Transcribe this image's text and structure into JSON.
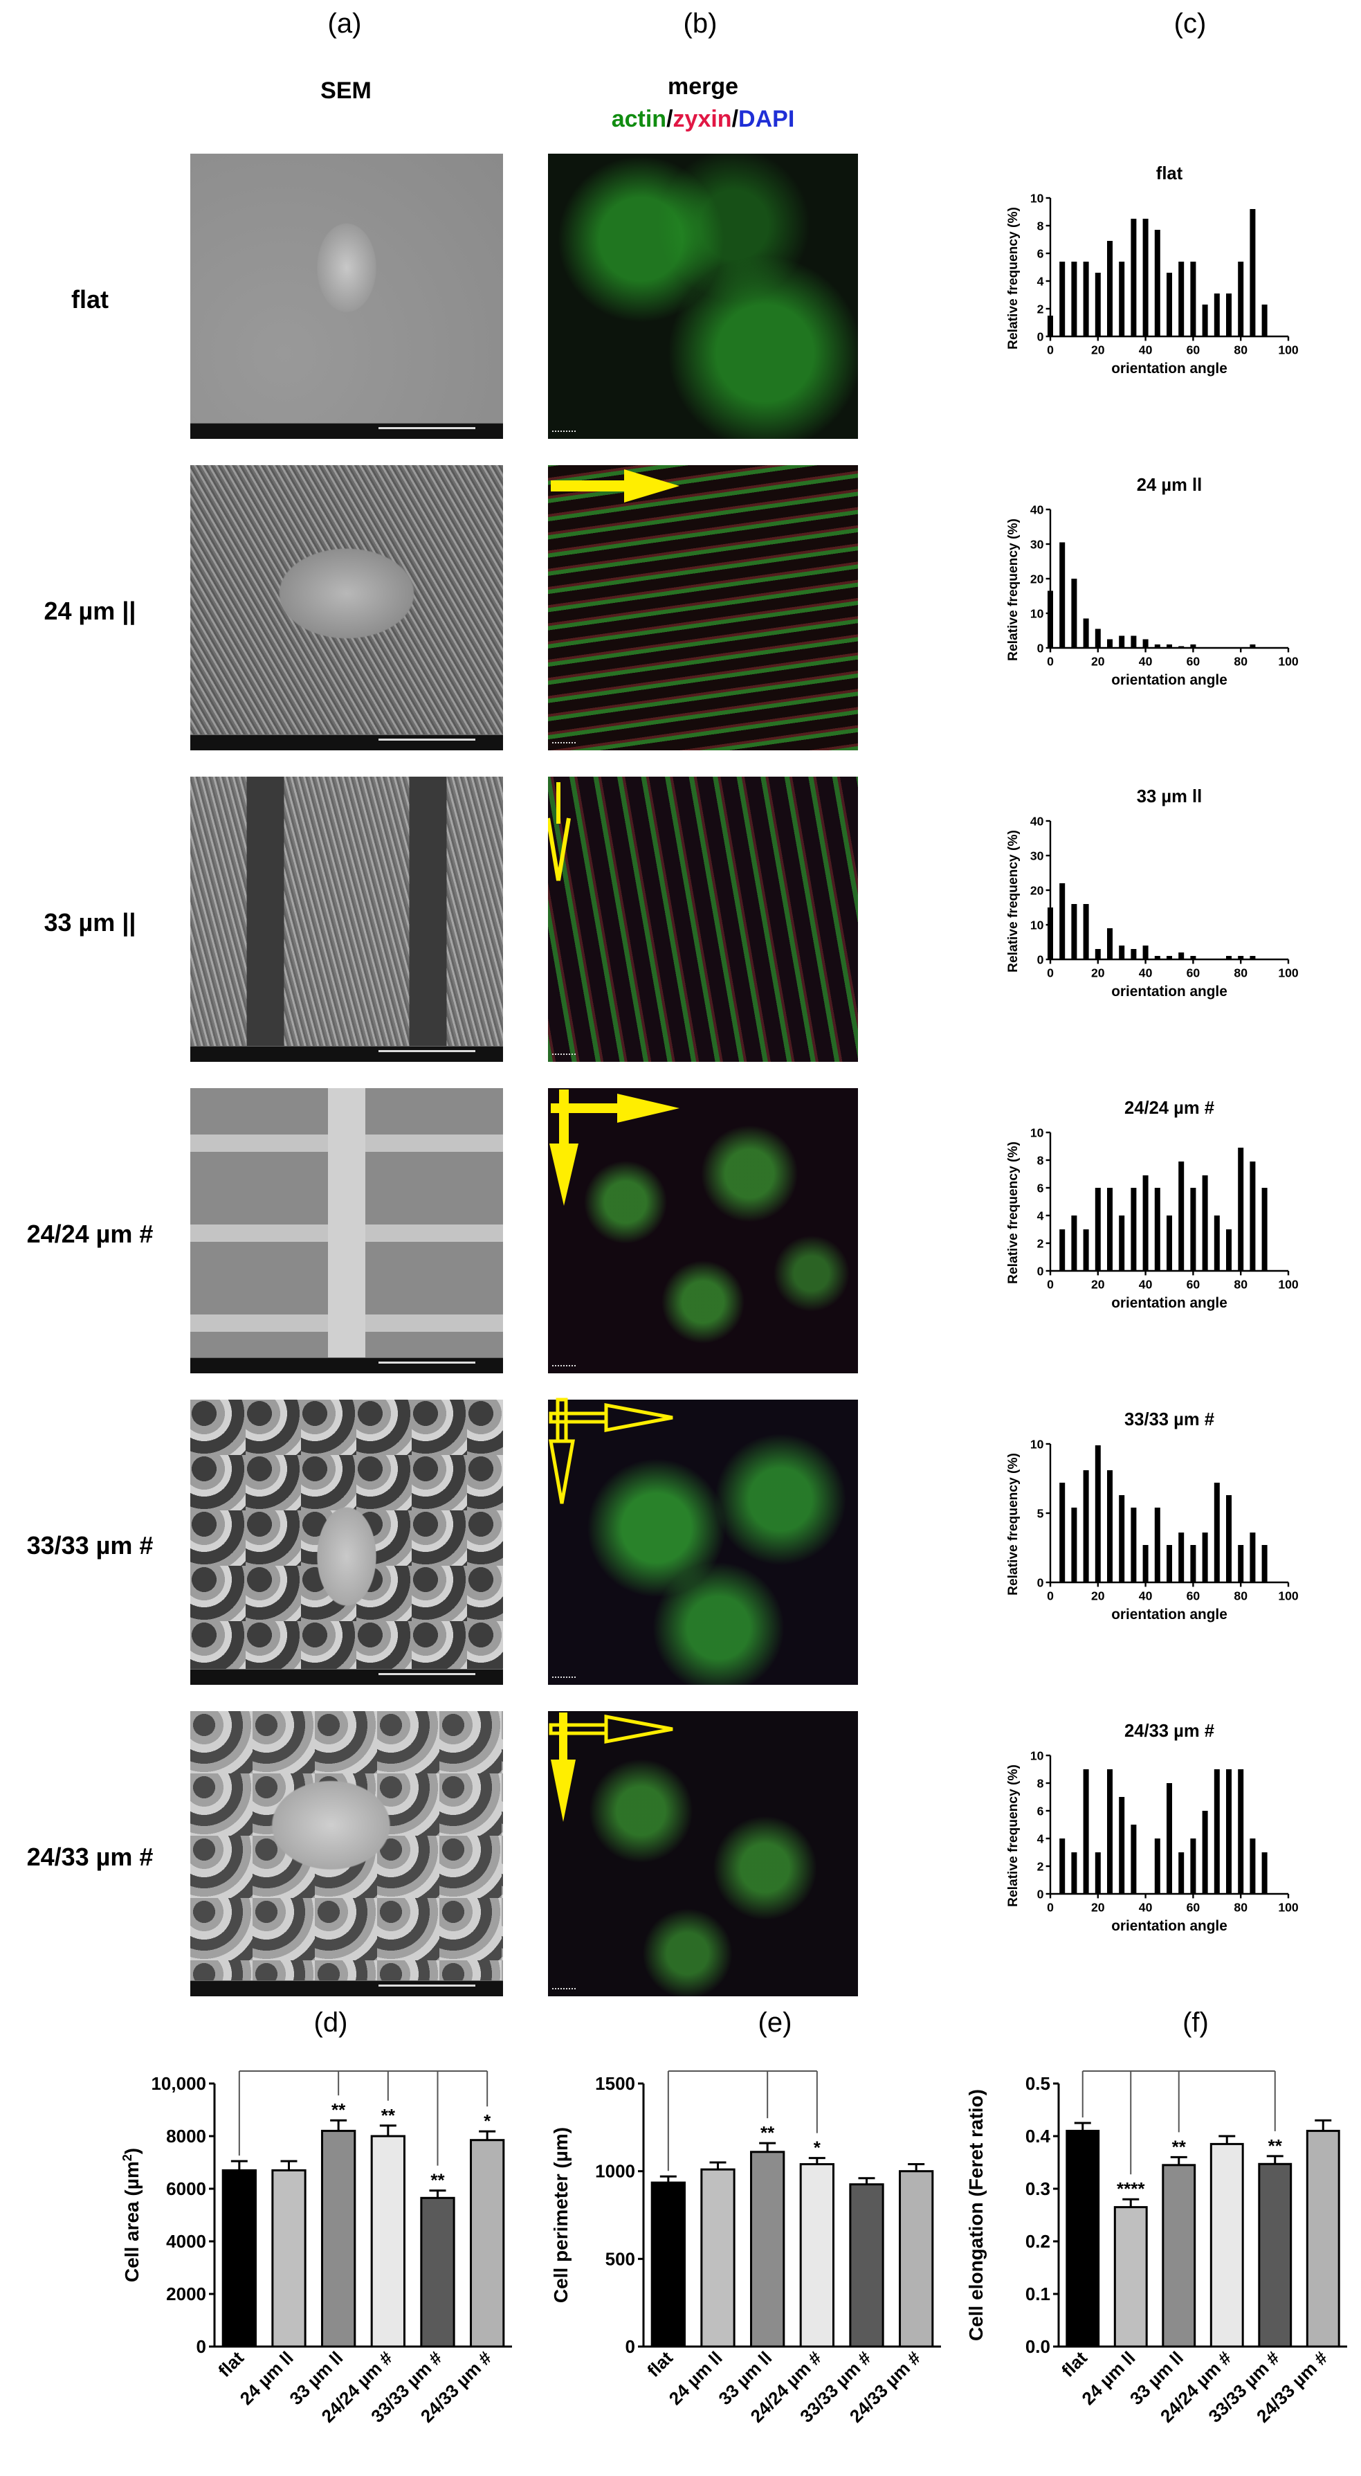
{
  "colors": {
    "actin": "#118d11",
    "zyxin": "#e11744",
    "dapi": "#1f2fd6",
    "arrow": "#ffee00",
    "bar_flat": "#000000",
    "bar_24": "#bfbfbf",
    "bar_33": "#8c8c8c",
    "bar_2424": "#e8e8e8",
    "bar_3333": "#5a5a5a",
    "bar_2433": "#b2b2b2"
  },
  "panel_letters": {
    "a": "(a)",
    "b": "(b)",
    "c": "(c)",
    "d": "(d)",
    "e": "(e)",
    "f": "(f)"
  },
  "columns": {
    "sem_title": "SEM",
    "merge_title": "merge",
    "actin": "actin",
    "slash1": "/",
    "zyxin": "zyxin",
    "slash2": "/",
    "dapi": "DAPI"
  },
  "rows": [
    {
      "label": "flat",
      "arrows": "none"
    },
    {
      "label": "24 µm ||",
      "arrows": "horizontal"
    },
    {
      "label": "33 µm ||",
      "arrows": "vertical"
    },
    {
      "label": "24/24 µm #",
      "arrows": "both"
    },
    {
      "label": "33/33 µm #",
      "arrows": "both-outline"
    },
    {
      "label": "24/33 µm #",
      "arrows": "both-outline-h"
    }
  ],
  "chart_data": [
    {
      "type": "bar",
      "title": "flat",
      "xlabel": "orientation angle",
      "ylabel": "Relative frequency (%)",
      "xlim": [
        0,
        100
      ],
      "ylim": [
        0,
        10
      ],
      "yticks": [
        0,
        2,
        4,
        6,
        8,
        10
      ],
      "xticks": [
        0,
        20,
        40,
        60,
        80,
        100
      ],
      "x": [
        0,
        5,
        10,
        15,
        20,
        25,
        30,
        35,
        40,
        45,
        50,
        55,
        60,
        65,
        70,
        75,
        80,
        85,
        90
      ],
      "values": [
        1.5,
        5.4,
        5.4,
        5.4,
        4.6,
        6.9,
        5.4,
        8.5,
        8.5,
        7.7,
        4.6,
        5.4,
        5.4,
        2.3,
        3.1,
        3.1,
        5.4,
        9.2,
        2.3
      ]
    },
    {
      "type": "bar",
      "title": "24 µm ll",
      "xlabel": "orientation angle",
      "ylabel": "Relative frequency (%)",
      "xlim": [
        0,
        100
      ],
      "ylim": [
        0,
        40
      ],
      "yticks": [
        0,
        10,
        20,
        30,
        40
      ],
      "xticks": [
        0,
        20,
        40,
        60,
        80,
        100
      ],
      "x": [
        0,
        5,
        10,
        15,
        20,
        25,
        30,
        35,
        40,
        45,
        50,
        55,
        60,
        65,
        70,
        75,
        80,
        85,
        90
      ],
      "values": [
        16.5,
        30.5,
        20,
        8.5,
        5.5,
        2.5,
        3.5,
        3.5,
        2.5,
        1,
        1,
        0.5,
        1,
        0,
        0,
        0,
        0,
        1,
        0
      ]
    },
    {
      "type": "bar",
      "title": "33 µm ll",
      "xlabel": "orientation angle",
      "ylabel": "Relative frequency (%)",
      "xlim": [
        0,
        100
      ],
      "ylim": [
        0,
        40
      ],
      "yticks": [
        0,
        10,
        20,
        30,
        40
      ],
      "xticks": [
        0,
        20,
        40,
        60,
        80,
        100
      ],
      "x": [
        0,
        5,
        10,
        15,
        20,
        25,
        30,
        35,
        40,
        45,
        50,
        55,
        60,
        65,
        70,
        75,
        80,
        85,
        90
      ],
      "values": [
        15,
        22,
        16,
        16,
        3,
        9,
        4,
        3,
        4,
        1,
        1,
        2,
        1,
        0,
        0,
        1,
        1,
        1,
        0
      ]
    },
    {
      "type": "bar",
      "title": "24/24 µm #",
      "xlabel": "orientation angle",
      "ylabel": "Relative frequency (%)",
      "xlim": [
        0,
        100
      ],
      "ylim": [
        0,
        10
      ],
      "yticks": [
        0,
        2,
        4,
        6,
        8,
        10
      ],
      "xticks": [
        0,
        20,
        40,
        60,
        80,
        100
      ],
      "x": [
        5,
        10,
        15,
        20,
        25,
        30,
        35,
        40,
        45,
        50,
        55,
        60,
        65,
        70,
        75,
        80,
        85,
        90
      ],
      "values": [
        3,
        4,
        3,
        6,
        6,
        4,
        6,
        6.9,
        6,
        4,
        7.9,
        6,
        6.9,
        4,
        3,
        8.9,
        7.9,
        6
      ]
    },
    {
      "type": "bar",
      "title": "33/33 µm #",
      "xlabel": "orientation angle",
      "ylabel": "Relative frequency (%)",
      "xlim": [
        0,
        100
      ],
      "ylim": [
        0,
        10
      ],
      "yticks": [
        0,
        5,
        10
      ],
      "xticks": [
        0,
        20,
        40,
        60,
        80,
        100
      ],
      "x": [
        5,
        10,
        15,
        20,
        25,
        30,
        35,
        40,
        45,
        50,
        55,
        60,
        65,
        70,
        75,
        80,
        85,
        90
      ],
      "values": [
        7.2,
        5.4,
        8.1,
        9.9,
        8.1,
        6.3,
        5.4,
        2.7,
        5.4,
        2.7,
        3.6,
        2.7,
        3.6,
        7.2,
        6.3,
        2.7,
        3.6,
        2.7
      ]
    },
    {
      "type": "bar",
      "title": "24/33 µm #",
      "xlabel": "orientation angle",
      "ylabel": "Relative frequency (%)",
      "xlim": [
        0,
        100
      ],
      "ylim": [
        0,
        10
      ],
      "yticks": [
        0,
        2,
        4,
        6,
        8,
        10
      ],
      "xticks": [
        0,
        20,
        40,
        60,
        80,
        100
      ],
      "x": [
        5,
        10,
        15,
        20,
        25,
        30,
        35,
        40,
        45,
        50,
        55,
        60,
        65,
        70,
        75,
        80,
        85,
        90
      ],
      "values": [
        4,
        3,
        9,
        3,
        9,
        7,
        5,
        0,
        4,
        8,
        3,
        4,
        6,
        9,
        9,
        9,
        4,
        3
      ]
    },
    {
      "type": "bar",
      "ylabel": "Cell area (µm²)",
      "ylabel_main": "Cell area (µm",
      "ylabel_sup": "2",
      "ylabel_end": ")",
      "ylim": [
        0,
        10000
      ],
      "yticks": [
        0,
        2000,
        4000,
        6000,
        8000,
        10000
      ],
      "ytick_labels": [
        "0",
        "2000",
        "4000",
        "6000",
        "8000",
        "10,000"
      ],
      "categories": [
        "flat",
        "24 µm ll",
        "33 µm ll",
        "24/24 µm #",
        "33/33 µm #",
        "24/33 µm #"
      ],
      "values": [
        6700,
        6700,
        8200,
        8000,
        5650,
        7850
      ],
      "errors": [
        350,
        350,
        400,
        400,
        280,
        330
      ],
      "significance": [
        "",
        "",
        "**",
        "**",
        "**",
        "*"
      ],
      "bracket_targets": [
        2,
        3,
        4,
        5
      ]
    },
    {
      "type": "bar",
      "ylabel": "Cell perimeter (µm)",
      "ylim": [
        0,
        1500
      ],
      "yticks": [
        0,
        500,
        1000,
        1500
      ],
      "ytick_labels": [
        "0",
        "500",
        "1000",
        "1500"
      ],
      "categories": [
        "flat",
        "24 µm ll",
        "33 µm ll",
        "24/24 µm #",
        "33/33 µm #",
        "24/33 µm #"
      ],
      "values": [
        935,
        1010,
        1110,
        1040,
        925,
        1000
      ],
      "errors": [
        35,
        40,
        50,
        35,
        35,
        40
      ],
      "significance": [
        "",
        "",
        "**",
        "*",
        "",
        ""
      ],
      "bracket_targets": [
        2,
        3
      ]
    },
    {
      "type": "bar",
      "ylabel": "Cell elongation (Feret ratio)",
      "ylim": [
        0,
        0.5
      ],
      "yticks": [
        0,
        0.1,
        0.2,
        0.3,
        0.4,
        0.5
      ],
      "ytick_labels": [
        "0.0",
        "0.1",
        "0.2",
        "0.3",
        "0.4",
        "0.5"
      ],
      "categories": [
        "flat",
        "24 µm ll",
        "33 µm ll",
        "24/24 µm #",
        "33/33 µm #",
        "24/33 µm #"
      ],
      "values": [
        0.41,
        0.265,
        0.345,
        0.385,
        0.347,
        0.41
      ],
      "errors": [
        0.015,
        0.015,
        0.015,
        0.015,
        0.015,
        0.02
      ],
      "significance": [
        "",
        "****",
        "**",
        "",
        "**",
        ""
      ],
      "bracket_targets": [
        1,
        2,
        4
      ]
    }
  ]
}
